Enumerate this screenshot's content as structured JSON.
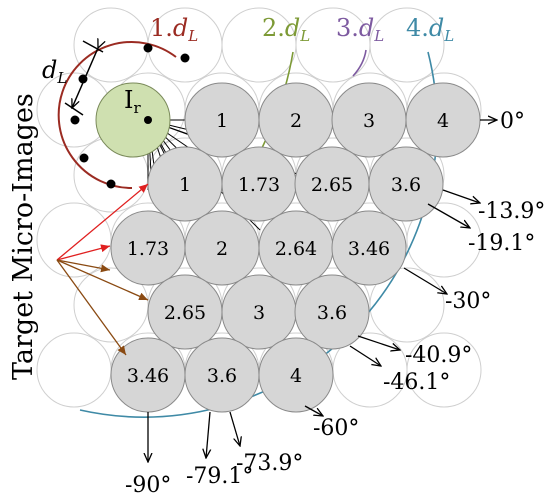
{
  "side_label": "Target Micro-Images",
  "dl_label": "d",
  "dl_sub": "L",
  "ir_label": "I",
  "ir_sub": "r",
  "rings": [
    {
      "prefix": "1.",
      "sym": "d",
      "sub": "L",
      "color": "#9b2b22"
    },
    {
      "prefix": "2.",
      "sym": "d",
      "sub": "L",
      "color": "#7d9a36"
    },
    {
      "prefix": "3.",
      "sym": "d",
      "sub": "L",
      "color": "#7d5aa0"
    },
    {
      "prefix": "4.",
      "sym": "d",
      "sub": "L",
      "color": "#3f8aa6"
    }
  ],
  "circle_values": [
    [
      "1",
      "2",
      "3",
      "4"
    ],
    [
      "1",
      "1.73",
      "2.65",
      "3.6"
    ],
    [
      "1.73",
      "2",
      "2.64",
      "3.46"
    ],
    [
      "2.65",
      "3",
      "3.6"
    ],
    [
      "3.46",
      "3.6",
      "4"
    ]
  ],
  "angles": [
    "0°",
    "-13.9°",
    "-19.1°",
    "-30°",
    "-40.9°",
    "-46.1°",
    "-60°",
    "-73.9°",
    "-79.1°",
    "-90°"
  ],
  "colors": {
    "gray_circle": "#d6d6d6",
    "ir_fill": "#cfe0b0",
    "red_arrow": "#e02020",
    "brown_arrow": "#8a4a12"
  }
}
